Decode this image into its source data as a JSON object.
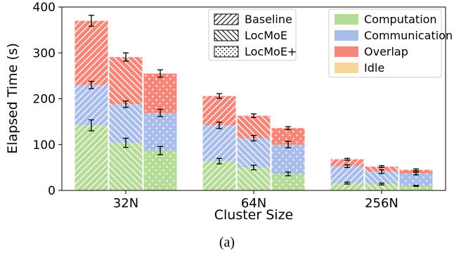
{
  "caption": "(a)",
  "chart_data": {
    "type": "bar",
    "stacked": true,
    "xlabel": "Cluster Size",
    "ylabel": "Elapsed Time (s)",
    "ylim": [
      0,
      400
    ],
    "yticks": [
      0,
      100,
      200,
      300,
      400
    ],
    "categories": [
      "32N",
      "64N",
      "256N"
    ],
    "methods": [
      "Baseline",
      "LocMoE",
      "LocMoE+"
    ],
    "components": [
      "Computation",
      "Communication",
      "Overlap",
      "Idle"
    ],
    "component_colors": {
      "Computation": "#b5dc97",
      "Communication": "#a9bdeb",
      "Overlap": "#f5877a",
      "Idle": "#f8d89a"
    },
    "legend_methods_placement": "top-center",
    "legend_components_placement": "top-right",
    "bars": [
      {
        "category": "32N",
        "method": "Baseline",
        "computation": 142,
        "communication": 88,
        "overlap": 140,
        "idle": 0,
        "err_comp": 12,
        "err_comm": 8,
        "err_total": 12
      },
      {
        "category": "32N",
        "method": "LocMoE",
        "computation": 104,
        "communication": 84,
        "overlap": 103,
        "idle": 0,
        "err_comp": 10,
        "err_comm": 7,
        "err_total": 9
      },
      {
        "category": "32N",
        "method": "LocMoE+",
        "computation": 87,
        "communication": 82,
        "overlap": 86,
        "idle": 0,
        "err_comp": 9,
        "err_comm": 8,
        "err_total": 8
      },
      {
        "category": "64N",
        "method": "Baseline",
        "computation": 64,
        "communication": 78,
        "overlap": 64,
        "idle": 0,
        "err_comp": 6,
        "err_comm": 7,
        "err_total": 5
      },
      {
        "category": "64N",
        "method": "LocMoE",
        "computation": 50,
        "communication": 64,
        "overlap": 49,
        "idle": 0,
        "err_comp": 5,
        "err_comm": 6,
        "err_total": 4
      },
      {
        "category": "64N",
        "method": "LocMoE+",
        "computation": 36,
        "communication": 64,
        "overlap": 36,
        "idle": 0,
        "err_comp": 4,
        "err_comm": 7,
        "err_total": 3
      },
      {
        "category": "256N",
        "method": "Baseline",
        "computation": 16,
        "communication": 37,
        "overlap": 15,
        "idle": 0,
        "err_comp": 2,
        "err_comm": 3,
        "err_total": 2
      },
      {
        "category": "256N",
        "method": "LocMoE",
        "computation": 14,
        "communication": 27,
        "overlap": 11,
        "idle": 0,
        "err_comp": 2,
        "err_comm": 4,
        "err_total": 2
      },
      {
        "category": "256N",
        "method": "LocMoE+",
        "computation": 10,
        "communication": 27,
        "overlap": 8,
        "idle": 0,
        "err_comp": 1,
        "err_comm": 3,
        "err_total": 2
      }
    ]
  }
}
